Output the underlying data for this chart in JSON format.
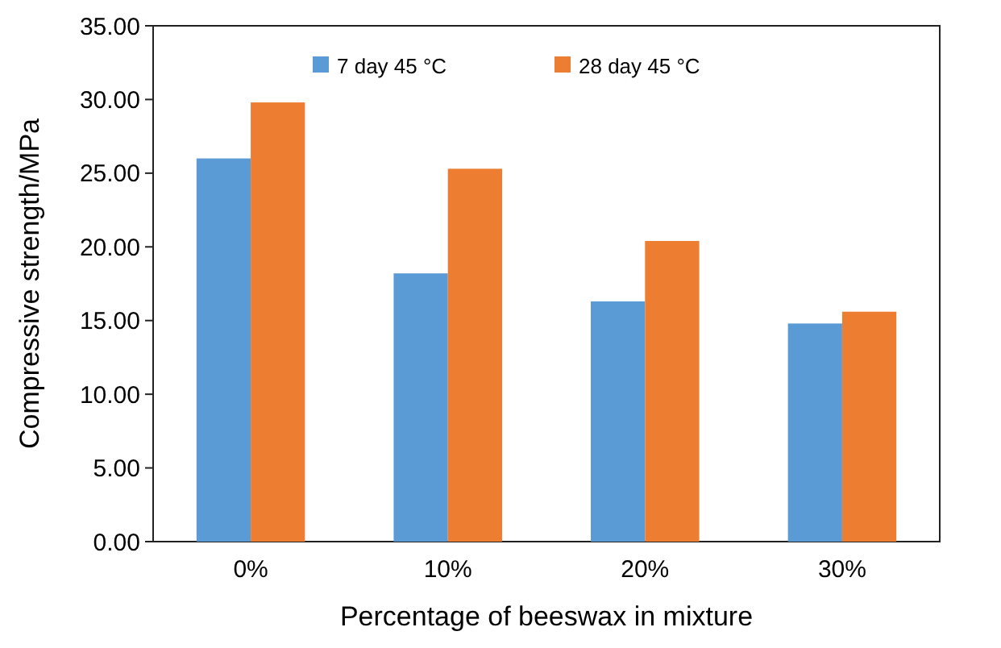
{
  "chart_data": {
    "type": "bar",
    "xlabel": "Percentage of beeswax in mixture",
    "ylabel": "Compressive strength/MPa",
    "categories": [
      "0%",
      "10%",
      "20%",
      "30%"
    ],
    "series": [
      {
        "name": "7 day 45 °C",
        "color": "#5b9bd5",
        "values": [
          26.0,
          18.2,
          16.3,
          14.8
        ]
      },
      {
        "name": "28 day 45 °C",
        "color": "#ed7d31",
        "values": [
          29.8,
          25.3,
          20.4,
          15.6
        ]
      }
    ],
    "ylim": [
      0,
      35
    ],
    "yticks": [
      {
        "value": 0,
        "label": "0.00"
      },
      {
        "value": 5,
        "label": "5.00"
      },
      {
        "value": 10,
        "label": "10.00"
      },
      {
        "value": 15,
        "label": "15.00"
      },
      {
        "value": 20,
        "label": "20.00"
      },
      {
        "value": 25,
        "label": "25.00"
      },
      {
        "value": 30,
        "label": "30.00"
      },
      {
        "value": 35,
        "label": "35.00"
      }
    ],
    "grid": false,
    "legend": "top"
  }
}
